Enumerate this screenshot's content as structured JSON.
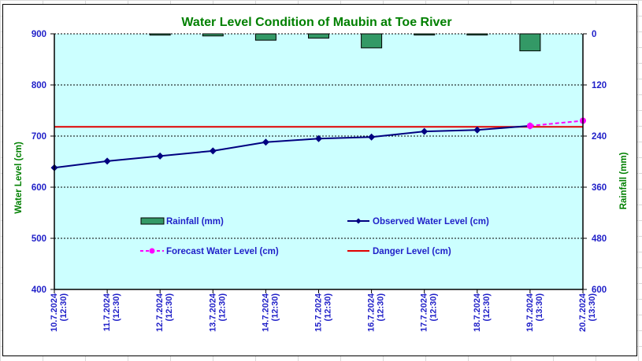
{
  "chart_data": {
    "type": "bar+line",
    "title": "Water Level Condition of  Maubin at Toe River",
    "categories": [
      [
        "10.7.2024",
        "(12:30)"
      ],
      [
        "11.7.2024",
        "(12:30)"
      ],
      [
        "12.7.2024",
        "(12:30)"
      ],
      [
        "13.7.2024",
        "(12:30)"
      ],
      [
        "14.7.2024",
        "(12:30)"
      ],
      [
        "15.7.2024",
        "(12:30)"
      ],
      [
        "16.7.2024",
        "(12:30)"
      ],
      [
        "17.7.2024",
        "(12:30)"
      ],
      [
        "18.7.2024",
        "(12:30)"
      ],
      [
        "19.7.2024",
        "(13:30)"
      ],
      [
        "20.7.2024",
        "(13:30)"
      ]
    ],
    "left_axis": {
      "label": "Water Level (cm)",
      "range": [
        400,
        900
      ],
      "ticks": [
        900,
        800,
        700,
        600,
        500,
        400
      ]
    },
    "right_axis": {
      "label": "Rainfall (mm)",
      "range": [
        0,
        600
      ],
      "inverted": true,
      "ticks": [
        0,
        120,
        240,
        360,
        480,
        600
      ]
    },
    "grid": "horizontal-dashed",
    "series": [
      {
        "name": "Rainfall (mm)",
        "type": "bar",
        "axis": "right",
        "color": "#339966",
        "values": [
          0,
          0,
          3,
          5,
          15,
          10,
          33,
          1,
          1,
          40,
          null
        ]
      },
      {
        "name": "Observed Water Level (cm)",
        "type": "line",
        "axis": "left",
        "color": "#000080",
        "marker": "diamond",
        "values": [
          638,
          651,
          661,
          671,
          688,
          695,
          698,
          709,
          712,
          720,
          null
        ]
      },
      {
        "name": "Forecast Water Level (cm)",
        "type": "line",
        "axis": "left",
        "color": "#ff00ff",
        "marker": "circle",
        "dashed": true,
        "values": [
          null,
          null,
          null,
          null,
          null,
          null,
          null,
          null,
          null,
          720,
          730
        ]
      },
      {
        "name": "Danger Level (cm)",
        "type": "line",
        "axis": "left",
        "color": "#e00000",
        "values": [
          718,
          718,
          718,
          718,
          718,
          718,
          718,
          718,
          718,
          718,
          718
        ]
      }
    ],
    "legend": {
      "placement": "inside-lower-center",
      "entries": [
        "Rainfall (mm)",
        "Observed Water Level (cm)",
        "Forecast Water Level (cm)",
        "Danger Level (cm)"
      ]
    },
    "plot_background": "#ccffff"
  }
}
